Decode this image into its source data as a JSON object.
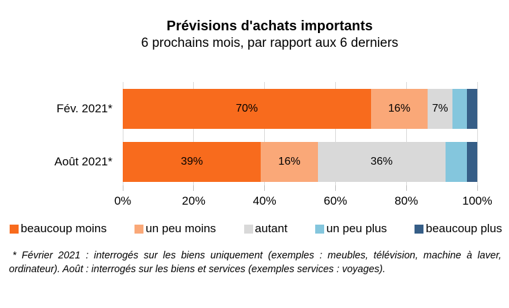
{
  "header": {
    "title": "Prévisions d'achats importants",
    "subtitle": "6 prochains mois, par rapport aux 6 derniers"
  },
  "chart_data": {
    "type": "bar",
    "orientation": "horizontal",
    "stacked": true,
    "unit": "%",
    "title": "Prévisions d'achats importants",
    "subtitle": "6 prochains mois, par rapport aux 6 derniers",
    "categories": [
      "Fév. 2021*",
      "Août 2021*"
    ],
    "series": [
      {
        "name": "beaucoup moins",
        "color": "#F86B1D",
        "values": [
          70,
          39
        ],
        "data_labels": [
          "70%",
          "39%"
        ]
      },
      {
        "name": "un peu moins",
        "color": "#FAA878",
        "values": [
          16,
          16
        ],
        "data_labels": [
          "16%",
          "16%"
        ]
      },
      {
        "name": "autant",
        "color": "#D9D9D9",
        "values": [
          7,
          36
        ],
        "data_labels": [
          "7%",
          "36%"
        ]
      },
      {
        "name": "un peu plus",
        "color": "#84C6DD",
        "values": [
          4,
          6
        ],
        "data_labels": [
          "",
          ""
        ]
      },
      {
        "name": "beaucoup plus",
        "color": "#365E87",
        "values": [
          3,
          3
        ],
        "data_labels": [
          "",
          ""
        ]
      }
    ],
    "xlim": [
      0,
      100
    ],
    "x_ticks": [
      "0%",
      "20%",
      "40%",
      "60%",
      "80%",
      "100%"
    ],
    "gridlines": true,
    "gridline_color": "#D9D9D9",
    "legend_position": "bottom"
  },
  "footnote": "* Février 2021 : interrogés sur les biens uniquement (exemples : meubles, télévision, machine à laver, ordinateur). Août : interrogés sur les biens et services (exemples services : voyages)."
}
